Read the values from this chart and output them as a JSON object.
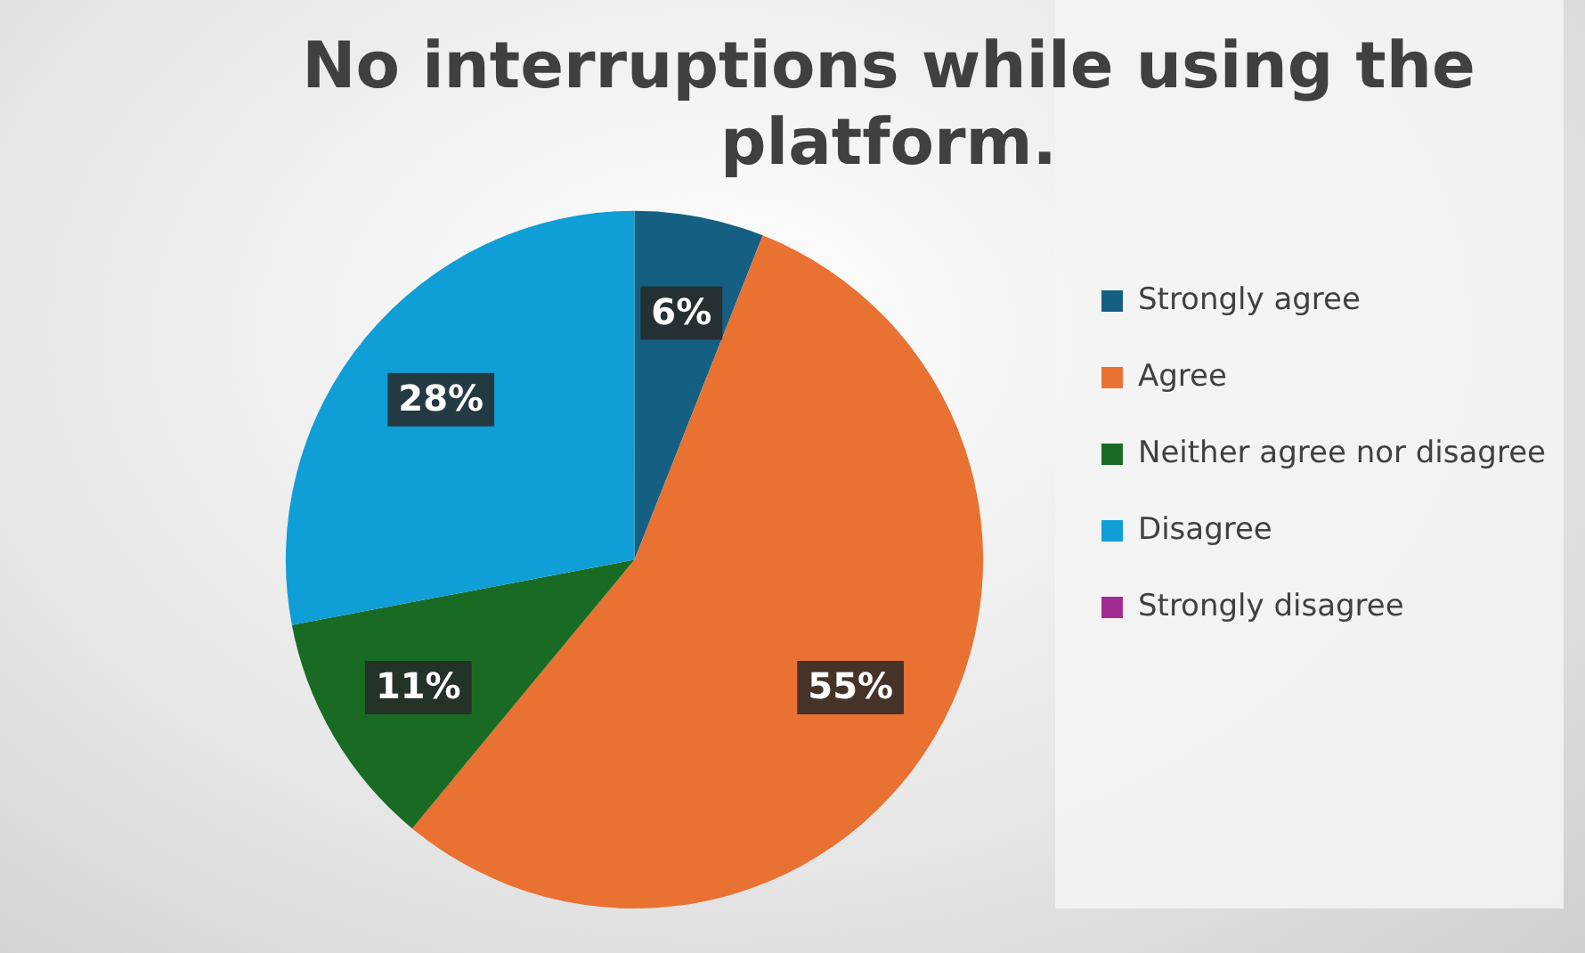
{
  "chart_data": {
    "type": "pie",
    "title": "No interruptions while using the platform.",
    "categories": [
      "Strongly agree",
      "Agree",
      "Neither agree nor disagree",
      "Disagree",
      "Strongly disagree"
    ],
    "values": [
      6,
      55,
      11,
      28,
      0
    ],
    "colors": [
      "#156082",
      "#e97132",
      "#196b24",
      "#0f9ed5",
      "#a02b93"
    ],
    "value_labels": [
      "6%",
      "55%",
      "11%",
      "28%",
      null
    ],
    "legend": "right"
  }
}
